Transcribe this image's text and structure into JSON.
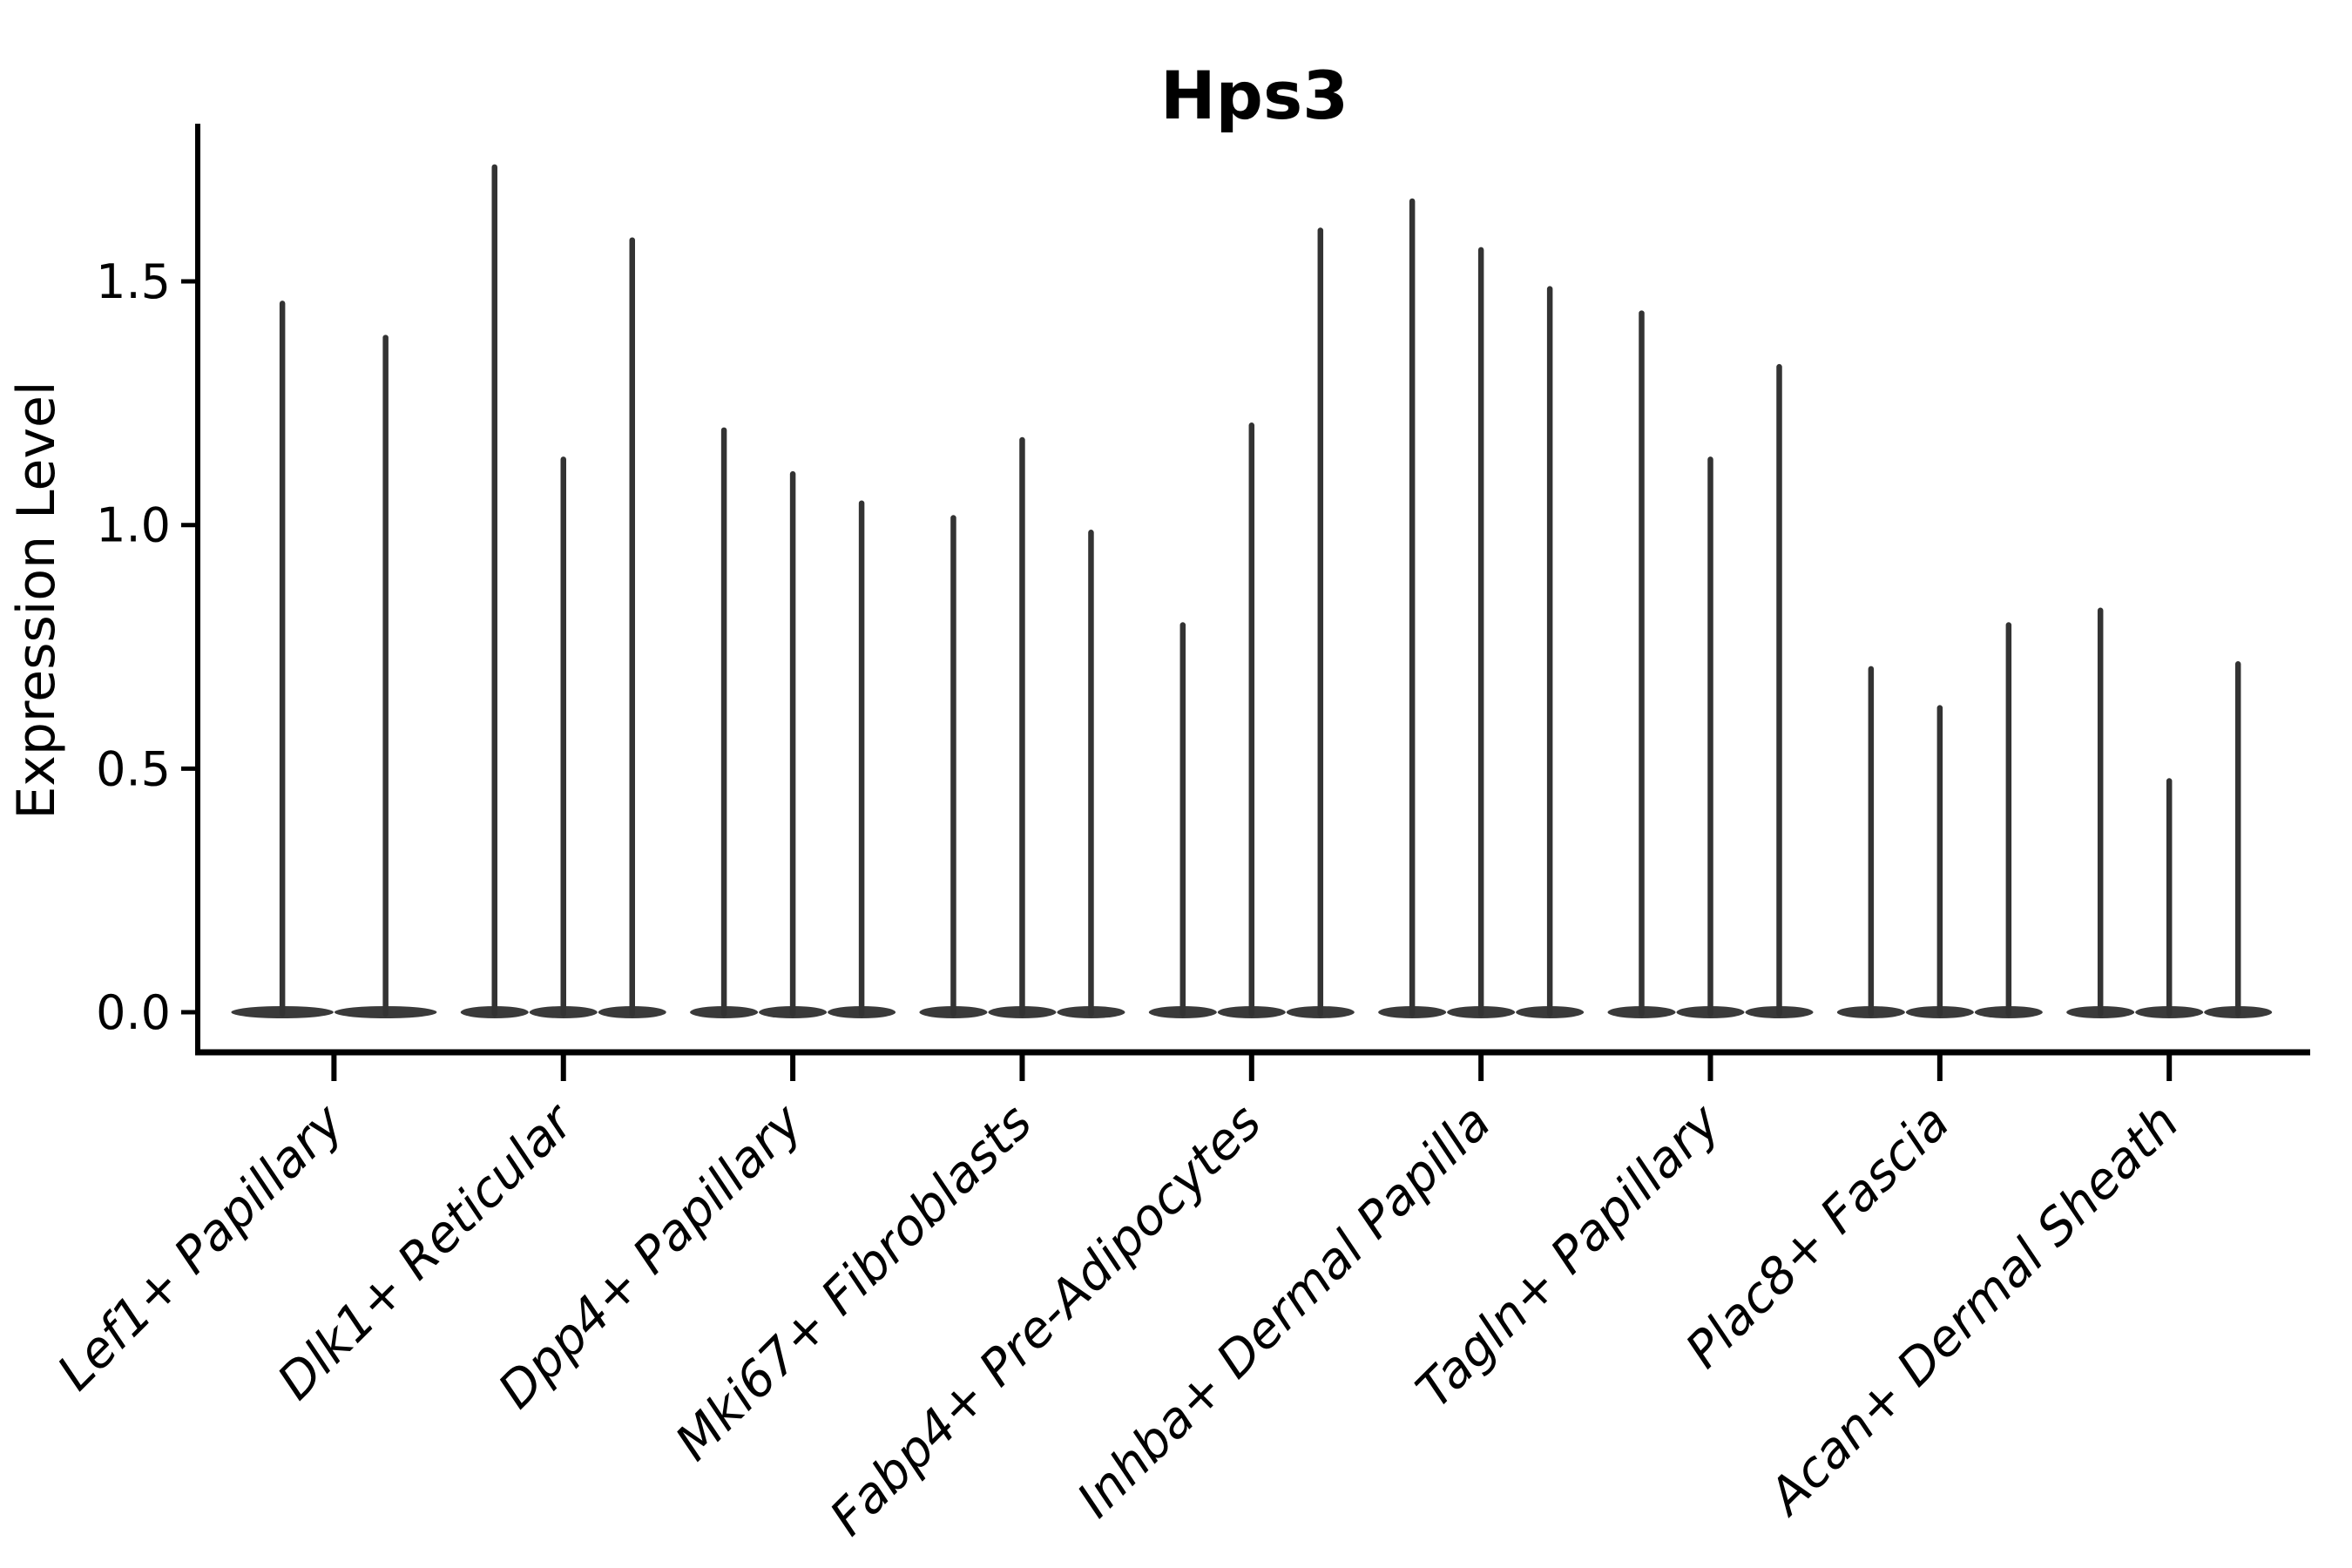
{
  "chart_data": {
    "type": "violin",
    "title": "Hps3",
    "ylabel": "Expression Level",
    "xlabel": "",
    "yticks": [
      0.0,
      0.5,
      1.0,
      1.5
    ],
    "ytick_labels": [
      "0.0",
      "0.5",
      "1.0",
      "1.5"
    ],
    "ylim": [
      -0.08,
      1.82
    ],
    "grid": false,
    "legend": "none",
    "x_tick_rotation_deg": 45,
    "x_tick_style": "italic",
    "violin_baseline_value": 0.0,
    "categories": [
      "Lef1+ Papillary",
      "Dlk1+ Reticular",
      "Dpp4+ Papillary",
      "Mki67+ Fibroblasts",
      "Fabp4+ Pre-Adipocytes",
      "Inhba+ Dermal Papilla",
      "Tagln+ Papillary",
      "Plac8+ Fascia",
      "Acan+ Dermal Sheath"
    ],
    "groups": [
      {
        "category": "Lef1+ Papillary",
        "violin_maxima": [
          1.46,
          1.39
        ]
      },
      {
        "category": "Dlk1+ Reticular",
        "violin_maxima": [
          1.74,
          1.14,
          1.59
        ]
      },
      {
        "category": "Dpp4+ Papillary",
        "violin_maxima": [
          1.2,
          1.11,
          1.05
        ]
      },
      {
        "category": "Mki67+ Fibroblasts",
        "violin_maxima": [
          1.02,
          1.18,
          0.99
        ]
      },
      {
        "category": "Fabp4+ Pre-Adipocytes",
        "violin_maxima": [
          0.8,
          1.21,
          1.61
        ]
      },
      {
        "category": "Inhba+ Dermal Papilla",
        "violin_maxima": [
          1.67,
          1.57,
          1.49
        ]
      },
      {
        "category": "Tagln+ Papillary",
        "violin_maxima": [
          1.44,
          1.14,
          1.33
        ]
      },
      {
        "category": "Plac8+ Fascia",
        "violin_maxima": [
          0.71,
          0.63,
          0.8
        ]
      },
      {
        "category": "Acan+ Dermal Sheath",
        "violin_maxima": [
          0.83,
          0.48,
          0.72
        ]
      }
    ],
    "colors": {
      "violin_fill": "#3a3a3a",
      "spike": "#333333",
      "axis": "#000000",
      "text": "#000000",
      "background": "#ffffff"
    }
  }
}
